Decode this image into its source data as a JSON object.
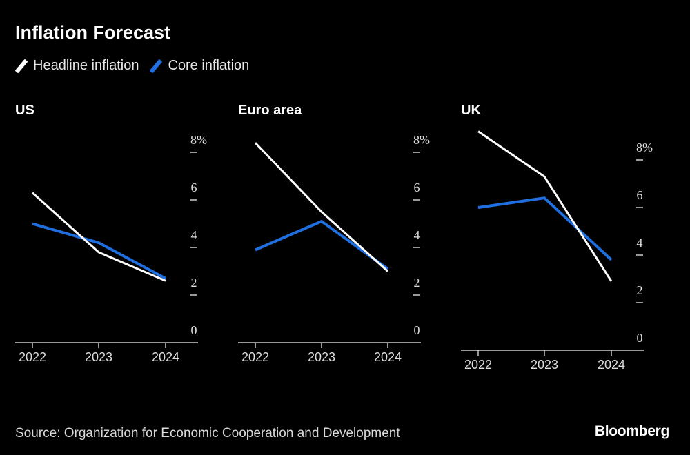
{
  "title": "Inflation Forecast",
  "legend": [
    {
      "name": "Headline inflation",
      "color": "#ffffff"
    },
    {
      "name": "Core inflation",
      "color": "#1f6fe0"
    }
  ],
  "source": "Source: Organization for Economic Cooperation and Development",
  "logo": "Bloomberg",
  "chart_data": [
    {
      "type": "line",
      "title": "US",
      "categories": [
        "2022",
        "2023",
        "2024"
      ],
      "ylim": [
        0,
        8
      ],
      "yticks": [
        "0",
        "2",
        "4",
        "6",
        "8%"
      ],
      "series": [
        {
          "name": "Headline inflation",
          "values": [
            6.3,
            3.8,
            2.6
          ]
        },
        {
          "name": "Core inflation",
          "values": [
            5.0,
            4.2,
            2.7
          ]
        }
      ]
    },
    {
      "type": "line",
      "title": "Euro area",
      "categories": [
        "2022",
        "2023",
        "2024"
      ],
      "ylim": [
        0,
        8
      ],
      "yticks": [
        "0",
        "2",
        "4",
        "6",
        "8%"
      ],
      "series": [
        {
          "name": "Headline inflation",
          "values": [
            8.4,
            5.5,
            3.0
          ]
        },
        {
          "name": "Core inflation",
          "values": [
            3.9,
            5.1,
            3.1
          ]
        }
      ]
    },
    {
      "type": "line",
      "title": "UK",
      "categories": [
        "2022",
        "2023",
        "2024"
      ],
      "ylim": [
        0,
        8
      ],
      "yticks": [
        "0",
        "2",
        "4",
        "6",
        "8%"
      ],
      "series": [
        {
          "name": "Headline inflation",
          "values": [
            9.2,
            7.3,
            2.9
          ]
        },
        {
          "name": "Core inflation",
          "values": [
            6.0,
            6.4,
            3.8
          ]
        }
      ]
    }
  ]
}
